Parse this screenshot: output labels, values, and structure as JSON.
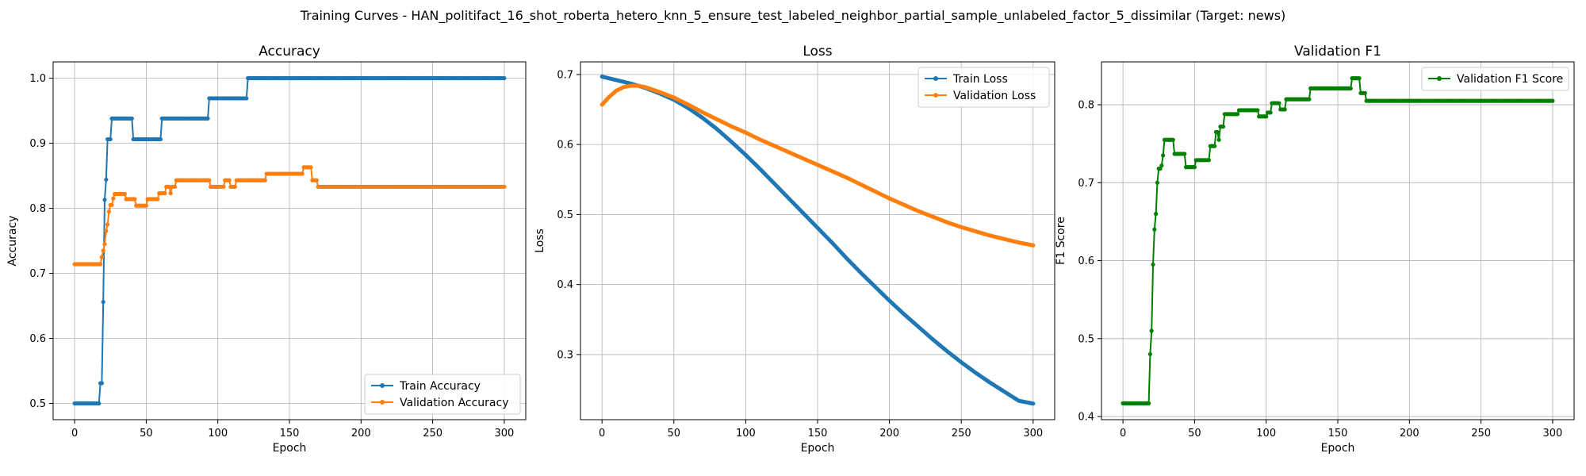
{
  "figure": {
    "suptitle": "Training Curves - HAN_politifact_16_shot_roberta_hetero_knn_5_ensure_test_labeled_neighbor_partial_sample_unlabeled_factor_5_dissimilar (Target: news)"
  },
  "chart_data": [
    {
      "type": "line",
      "title": "Accuracy",
      "xlabel": "Epoch",
      "ylabel": "Accuracy",
      "xlim": [
        -15,
        315
      ],
      "ylim": [
        0.475,
        1.025
      ],
      "xticks": [
        0,
        50,
        100,
        150,
        200,
        250,
        300
      ],
      "yticks": [
        0.5,
        0.6,
        0.7,
        0.8,
        0.9,
        1.0
      ],
      "ytick_labels": [
        "0.5",
        "0.6",
        "0.7",
        "0.8",
        "0.9",
        "1.0"
      ],
      "grid": true,
      "legend": "lower-right",
      "series": [
        {
          "name": "Train Accuracy",
          "color": "#1f77b4",
          "points": [
            [
              0,
              0.5
            ],
            [
              17,
              0.5
            ],
            [
              18,
              0.531
            ],
            [
              19,
              0.531
            ],
            [
              20,
              0.656
            ],
            [
              21,
              0.813
            ],
            [
              22,
              0.844
            ],
            [
              23,
              0.906
            ],
            [
              25,
              0.906
            ],
            [
              26,
              0.938
            ],
            [
              40,
              0.938
            ],
            [
              41,
              0.906
            ],
            [
              60,
              0.906
            ],
            [
              61,
              0.938
            ],
            [
              93,
              0.938
            ],
            [
              94,
              0.969
            ],
            [
              120,
              0.969
            ],
            [
              121,
              1.0
            ],
            [
              300,
              1.0
            ]
          ]
        },
        {
          "name": "Validation Accuracy",
          "color": "#ff7f0e",
          "points": [
            [
              0,
              0.714
            ],
            [
              17,
              0.714
            ],
            [
              19,
              0.725
            ],
            [
              20,
              0.735
            ],
            [
              21,
              0.745
            ],
            [
              22,
              0.765
            ],
            [
              23,
              0.775
            ],
            [
              24,
              0.795
            ],
            [
              25,
              0.805
            ],
            [
              27,
              0.815
            ],
            [
              28,
              0.822
            ],
            [
              35,
              0.822
            ],
            [
              36,
              0.814
            ],
            [
              42,
              0.814
            ],
            [
              43,
              0.804
            ],
            [
              50,
              0.804
            ],
            [
              51,
              0.814
            ],
            [
              58,
              0.814
            ],
            [
              59,
              0.823
            ],
            [
              63,
              0.823
            ],
            [
              64,
              0.833
            ],
            [
              66,
              0.833
            ],
            [
              67,
              0.823
            ],
            [
              68,
              0.833
            ],
            [
              70,
              0.833
            ],
            [
              71,
              0.843
            ],
            [
              94,
              0.843
            ],
            [
              95,
              0.833
            ],
            [
              104,
              0.833
            ],
            [
              105,
              0.843
            ],
            [
              108,
              0.843
            ],
            [
              109,
              0.833
            ],
            [
              112,
              0.833
            ],
            [
              113,
              0.843
            ],
            [
              133,
              0.843
            ],
            [
              134,
              0.853
            ],
            [
              159,
              0.853
            ],
            [
              160,
              0.863
            ],
            [
              165,
              0.863
            ],
            [
              166,
              0.843
            ],
            [
              169,
              0.843
            ],
            [
              170,
              0.833
            ],
            [
              300,
              0.833
            ]
          ]
        }
      ]
    },
    {
      "type": "line",
      "title": "Loss",
      "xlabel": "Epoch",
      "ylabel": "Loss",
      "xlim": [
        -15,
        315
      ],
      "ylim": [
        0.207,
        0.718
      ],
      "xticks": [
        0,
        50,
        100,
        150,
        200,
        250,
        300
      ],
      "yticks": [
        0.3,
        0.4,
        0.5,
        0.6,
        0.7
      ],
      "ytick_labels": [
        "0.3",
        "0.4",
        "0.5",
        "0.6",
        "0.7"
      ],
      "grid": true,
      "legend": "top-right",
      "series": [
        {
          "name": "Train Loss",
          "color": "#1f77b4",
          "points": [
            [
              0,
              0.697
            ],
            [
              10,
              0.692
            ],
            [
              20,
              0.687
            ],
            [
              30,
              0.681
            ],
            [
              40,
              0.673
            ],
            [
              50,
              0.664
            ],
            [
              60,
              0.652
            ],
            [
              70,
              0.638
            ],
            [
              80,
              0.622
            ],
            [
              90,
              0.604
            ],
            [
              100,
              0.585
            ],
            [
              110,
              0.565
            ],
            [
              120,
              0.544
            ],
            [
              130,
              0.523
            ],
            [
              140,
              0.502
            ],
            [
              150,
              0.481
            ],
            [
              160,
              0.46
            ],
            [
              170,
              0.438
            ],
            [
              180,
              0.417
            ],
            [
              190,
              0.397
            ],
            [
              200,
              0.377
            ],
            [
              210,
              0.358
            ],
            [
              220,
              0.34
            ],
            [
              230,
              0.322
            ],
            [
              240,
              0.305
            ],
            [
              250,
              0.289
            ],
            [
              260,
              0.274
            ],
            [
              270,
              0.26
            ],
            [
              280,
              0.247
            ],
            [
              290,
              0.234
            ],
            [
              300,
              0.23
            ]
          ]
        },
        {
          "name": "Validation Loss",
          "color": "#ff7f0e",
          "points": [
            [
              0,
              0.657
            ],
            [
              5,
              0.668
            ],
            [
              10,
              0.677
            ],
            [
              15,
              0.682
            ],
            [
              20,
              0.684
            ],
            [
              25,
              0.684
            ],
            [
              30,
              0.682
            ],
            [
              40,
              0.675
            ],
            [
              50,
              0.667
            ],
            [
              60,
              0.657
            ],
            [
              70,
              0.646
            ],
            [
              80,
              0.636
            ],
            [
              90,
              0.626
            ],
            [
              100,
              0.617
            ],
            [
              110,
              0.607
            ],
            [
              120,
              0.598
            ],
            [
              130,
              0.589
            ],
            [
              140,
              0.58
            ],
            [
              150,
              0.571
            ],
            [
              160,
              0.562
            ],
            [
              170,
              0.553
            ],
            [
              180,
              0.543
            ],
            [
              190,
              0.533
            ],
            [
              200,
              0.523
            ],
            [
              210,
              0.514
            ],
            [
              220,
              0.505
            ],
            [
              230,
              0.497
            ],
            [
              240,
              0.489
            ],
            [
              250,
              0.482
            ],
            [
              260,
              0.476
            ],
            [
              270,
              0.47
            ],
            [
              280,
              0.465
            ],
            [
              290,
              0.46
            ],
            [
              300,
              0.456
            ]
          ]
        }
      ]
    },
    {
      "type": "line",
      "title": "Validation F1",
      "xlabel": "Epoch",
      "ylabel": "F1 Score",
      "xlim": [
        -15,
        315
      ],
      "ylim": [
        0.396,
        0.855
      ],
      "xticks": [
        0,
        50,
        100,
        150,
        200,
        250,
        300
      ],
      "yticks": [
        0.4,
        0.5,
        0.6,
        0.7,
        0.8
      ],
      "ytick_labels": [
        "0.4",
        "0.5",
        "0.6",
        "0.7",
        "0.8"
      ],
      "grid": true,
      "legend": "top-right",
      "series": [
        {
          "name": "Validation F1 Score",
          "color": "#008000",
          "points": [
            [
              0,
              0.417
            ],
            [
              18,
              0.417
            ],
            [
              19,
              0.48
            ],
            [
              20,
              0.51
            ],
            [
              21,
              0.595
            ],
            [
              22,
              0.64
            ],
            [
              23,
              0.66
            ],
            [
              24,
              0.7
            ],
            [
              25,
              0.718
            ],
            [
              27,
              0.722
            ],
            [
              28,
              0.735
            ],
            [
              29,
              0.755
            ],
            [
              35,
              0.755
            ],
            [
              36,
              0.737
            ],
            [
              43,
              0.737
            ],
            [
              44,
              0.72
            ],
            [
              50,
              0.72
            ],
            [
              51,
              0.729
            ],
            [
              60,
              0.729
            ],
            [
              61,
              0.747
            ],
            [
              64,
              0.747
            ],
            [
              65,
              0.765
            ],
            [
              66,
              0.765
            ],
            [
              67,
              0.755
            ],
            [
              68,
              0.772
            ],
            [
              70,
              0.772
            ],
            [
              71,
              0.788
            ],
            [
              80,
              0.788
            ],
            [
              81,
              0.793
            ],
            [
              94,
              0.793
            ],
            [
              95,
              0.785
            ],
            [
              100,
              0.785
            ],
            [
              101,
              0.79
            ],
            [
              103,
              0.79
            ],
            [
              104,
              0.802
            ],
            [
              109,
              0.802
            ],
            [
              110,
              0.794
            ],
            [
              113,
              0.794
            ],
            [
              114,
              0.807
            ],
            [
              130,
              0.807
            ],
            [
              131,
              0.821
            ],
            [
              159,
              0.821
            ],
            [
              160,
              0.834
            ],
            [
              165,
              0.834
            ],
            [
              166,
              0.815
            ],
            [
              169,
              0.815
            ],
            [
              170,
              0.805
            ],
            [
              300,
              0.805
            ]
          ]
        }
      ]
    }
  ]
}
